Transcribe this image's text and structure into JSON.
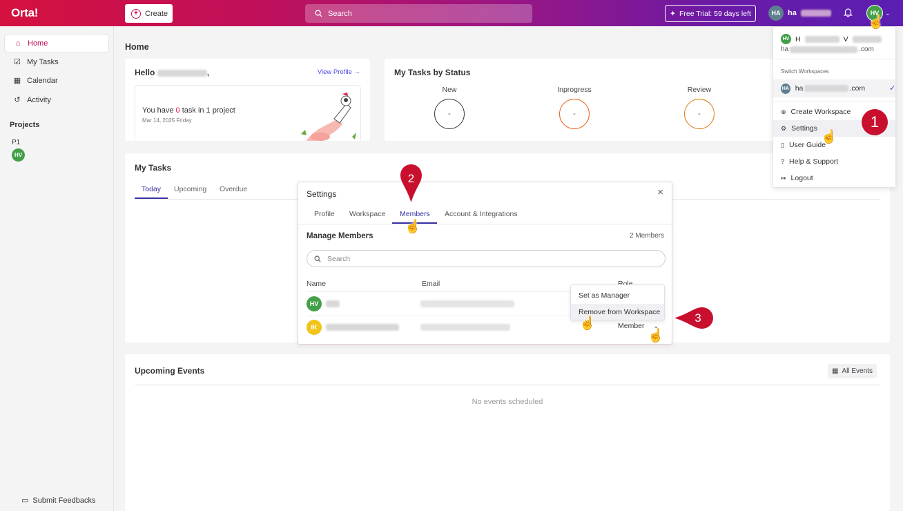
{
  "topbar": {
    "logo": "Orta!",
    "create_label": "Create",
    "search_placeholder": "Search",
    "trial_label": "Free Trial: 59 days left",
    "user_initials": "HA",
    "user_name": "ha",
    "avatar_initials": "HV"
  },
  "sidebar": {
    "items": [
      {
        "label": "Home"
      },
      {
        "label": "My Tasks"
      },
      {
        "label": "Calendar"
      },
      {
        "label": "Activity"
      }
    ],
    "projects_heading": "Projects",
    "project_name": "P1",
    "project_avatar": "HV",
    "feedback_label": "Submit Feedbacks"
  },
  "main": {
    "page_title": "Home",
    "hello": {
      "greeting": "Hello",
      "view_profile": "View Profile →",
      "tasks_prefix": "You have ",
      "task_count": "0",
      "tasks_suffix": " task in 1 project",
      "date": "Mar 14, 2025 Friday"
    },
    "status": {
      "title": "My Tasks by Status",
      "columns": [
        {
          "label": "New",
          "value": "-",
          "color": "#333333"
        },
        {
          "label": "Inprogress",
          "value": "-",
          "color": "#ea580c"
        },
        {
          "label": "Review",
          "value": "-",
          "color": "#d97706"
        }
      ]
    },
    "my_tasks": {
      "title": "My Tasks",
      "tabs": [
        "Today",
        "Upcoming",
        "Overdue"
      ]
    },
    "events": {
      "title": "Upcoming Events",
      "all_events": "All Events",
      "empty": "No events scheduled"
    }
  },
  "settings_modal": {
    "title": "Settings",
    "tabs": [
      "Profile",
      "Workspace",
      "Members",
      "Account & Integrations"
    ],
    "manage_title": "Manage Members",
    "member_count": "2 Members",
    "search_placeholder": "Search",
    "columns": [
      "Name",
      "Email",
      "Role"
    ],
    "members": [
      {
        "initials": "HV",
        "color": "#43a047"
      },
      {
        "initials": "IK",
        "color": "#f0c419",
        "role": "Member"
      }
    ],
    "role_menu": [
      "Set as Manager",
      "Remove from Workspace"
    ]
  },
  "user_menu": {
    "name_first": "H",
    "name_last": "V",
    "email_prefix": "ha",
    "email_suffix": ".com",
    "switch_heading": "Switch Workspaces",
    "workspace_initials": "HA",
    "workspace_prefix": "ha",
    "workspace_suffix": ".com",
    "items": [
      "Create Workspace",
      "Settings",
      "User Guide",
      "Help & Support",
      "Logout"
    ]
  },
  "annotations": {
    "step1": "1",
    "step2": "2",
    "step3": "3"
  },
  "colors": {
    "brand": "#c0105a",
    "accent": "#3730a3",
    "annotation": "#c8102e"
  }
}
